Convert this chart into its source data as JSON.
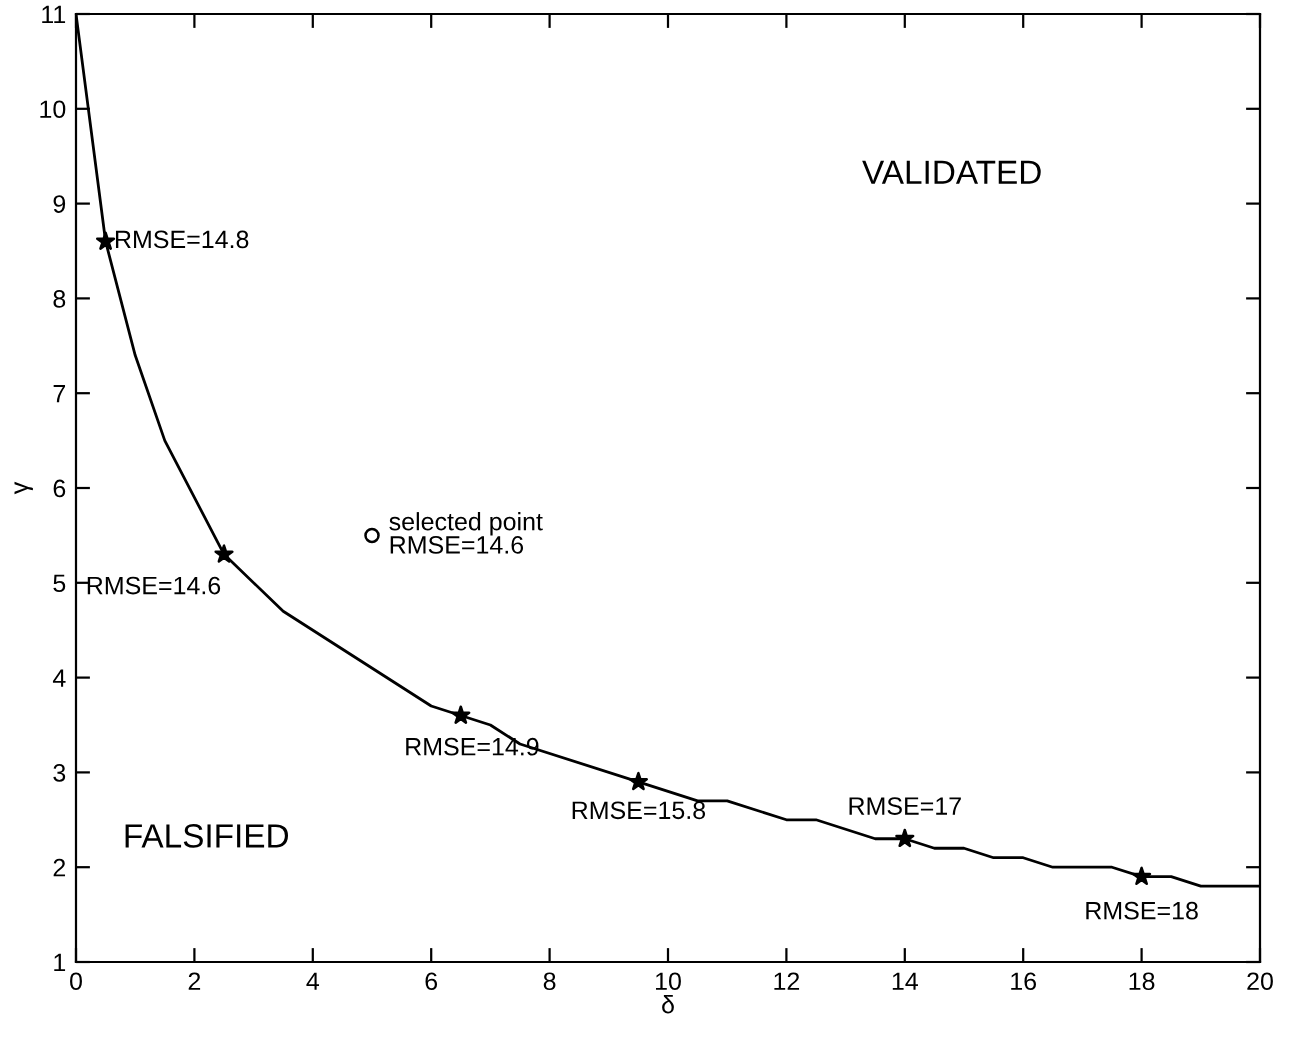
{
  "chart_data": {
    "type": "line",
    "xlabel": "δ",
    "ylabel": "γ",
    "xlim": [
      0,
      20
    ],
    "ylim": [
      1,
      11
    ],
    "xticks": [
      0,
      2,
      4,
      6,
      8,
      10,
      12,
      14,
      16,
      18,
      20
    ],
    "yticks": [
      1,
      2,
      3,
      4,
      5,
      6,
      7,
      8,
      9,
      10,
      11
    ],
    "grid": false,
    "series": [
      {
        "color": "#000000",
        "marker": "none",
        "line_style": "solid",
        "x": [
          0,
          0.5,
          1,
          1.5,
          2.5,
          3.5,
          6,
          6.5,
          7,
          7.5,
          9.5,
          10.5,
          11,
          12,
          12.5,
          13.5,
          14,
          14.5,
          15,
          15.5,
          16,
          16.5,
          17.5,
          18,
          18.5,
          19,
          20
        ],
        "values": [
          11,
          8.6,
          7.4,
          6.5,
          5.3,
          4.7,
          3.7,
          3.6,
          3.5,
          3.3,
          2.9,
          2.7,
          2.7,
          2.5,
          2.5,
          2.3,
          2.3,
          2.2,
          2.2,
          2.1,
          2.1,
          2.0,
          2.0,
          1.9,
          1.9,
          1.8,
          1.8
        ]
      },
      {
        "type": "scatter",
        "color": "#000000",
        "marker": "star",
        "x": [
          0.5,
          2.5,
          6.5,
          9.5,
          14,
          18
        ],
        "values": [
          8.6,
          5.3,
          3.6,
          2.9,
          2.3,
          1.9
        ]
      },
      {
        "type": "scatter",
        "color": "#000000",
        "marker": "circle",
        "x": [
          5
        ],
        "values": [
          5.5
        ]
      }
    ],
    "annotations": [
      {
        "text": "RMSE=14.8",
        "x": 0.5,
        "y": 8.6
      },
      {
        "text": "RMSE=14.6",
        "x": 2.5,
        "y": 5.3
      },
      {
        "text": "RMSE=14.9",
        "x": 6.5,
        "y": 3.6
      },
      {
        "text": "RMSE=15.8",
        "x": 9.5,
        "y": 2.9
      },
      {
        "text": "RMSE=17",
        "x": 14,
        "y": 2.3
      },
      {
        "text": "RMSE=18",
        "x": 18,
        "y": 1.9
      },
      {
        "text": "selected point\nRMSE=14.6",
        "x": 5,
        "y": 5.5
      },
      "VALIDATED",
      "FALSIFIED"
    ]
  }
}
